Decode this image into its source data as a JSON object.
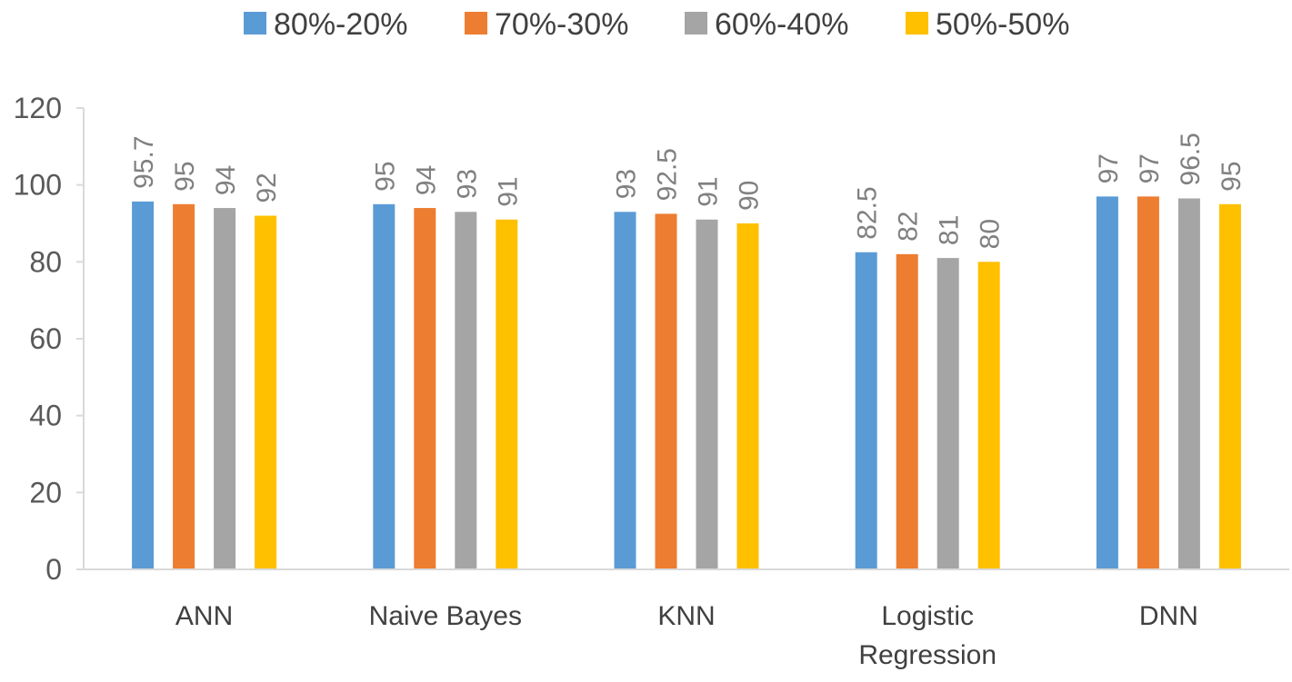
{
  "chart_data": {
    "type": "bar",
    "title": "",
    "xlabel": "",
    "ylabel": "",
    "ylim": [
      0,
      120
    ],
    "yticks": [
      0,
      20,
      40,
      60,
      80,
      100,
      120
    ],
    "categories": [
      [
        "ANN"
      ],
      [
        "Naive Bayes"
      ],
      [
        "KNN"
      ],
      [
        "Logistic",
        "Regression"
      ],
      [
        "DNN"
      ]
    ],
    "series": [
      {
        "name": "80%-20%",
        "color": "#5B9BD5",
        "values": [
          95.7,
          95,
          93,
          82.5,
          97
        ]
      },
      {
        "name": "70%-30%",
        "color": "#ED7D31",
        "values": [
          95,
          94,
          92.5,
          82,
          97
        ]
      },
      {
        "name": "60%-40%",
        "color": "#A5A5A5",
        "values": [
          94,
          93,
          91,
          81,
          96.5
        ]
      },
      {
        "name": "50%-50%",
        "color": "#FFC000",
        "values": [
          92,
          91,
          90,
          80,
          95
        ]
      }
    ],
    "legend_position": "top",
    "grid": false,
    "data_labels": true
  }
}
